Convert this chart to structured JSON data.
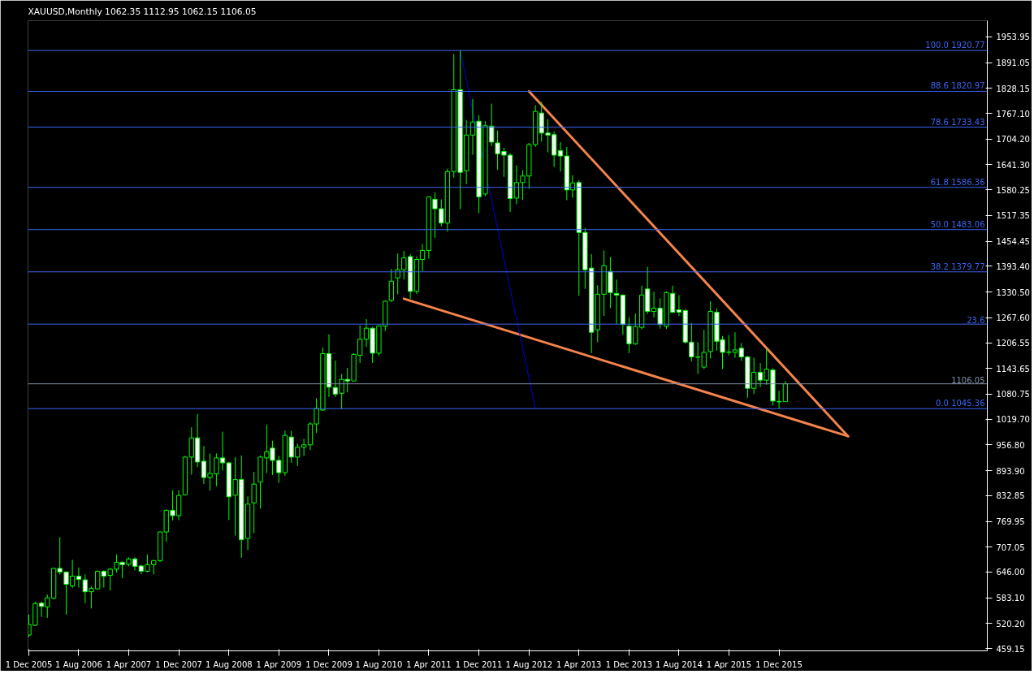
{
  "chart_data": {
    "type": "candlestick",
    "title": "XAUUSD,Monthly  1062.35 1112.95 1062.15 1106.05",
    "color": "#00ff00",
    "x": [
      "2005-12",
      "2006-01",
      "2006-02",
      "2006-03",
      "2006-04",
      "2006-05",
      "2006-06",
      "2006-07",
      "2006-08",
      "2006-09",
      "2006-10",
      "2006-11",
      "2006-12",
      "2007-01",
      "2007-02",
      "2007-03",
      "2007-04",
      "2007-05",
      "2007-06",
      "2007-07",
      "2007-08",
      "2007-09",
      "2007-10",
      "2007-11",
      "2007-12",
      "2008-01",
      "2008-02",
      "2008-03",
      "2008-04",
      "2008-05",
      "2008-06",
      "2008-07",
      "2008-08",
      "2008-09",
      "2008-10",
      "2008-11",
      "2008-12",
      "2009-01",
      "2009-02",
      "2009-03",
      "2009-04",
      "2009-05",
      "2009-06",
      "2009-07",
      "2009-08",
      "2009-09",
      "2009-10",
      "2009-11",
      "2009-12",
      "2010-01",
      "2010-02",
      "2010-03",
      "2010-04",
      "2010-05",
      "2010-06",
      "2010-07",
      "2010-08",
      "2010-09",
      "2010-10",
      "2010-11",
      "2010-12",
      "2011-01",
      "2011-02",
      "2011-03",
      "2011-04",
      "2011-05",
      "2011-06",
      "2011-07",
      "2011-08",
      "2011-09",
      "2011-10",
      "2011-11",
      "2011-12",
      "2012-01",
      "2012-02",
      "2012-03",
      "2012-04",
      "2012-05",
      "2012-06",
      "2012-07",
      "2012-08",
      "2012-09",
      "2012-10",
      "2012-11",
      "2012-12",
      "2013-01",
      "2013-02",
      "2013-03",
      "2013-04",
      "2013-05",
      "2013-06",
      "2013-07",
      "2013-08",
      "2013-09",
      "2013-10",
      "2013-11",
      "2013-12",
      "2014-01",
      "2014-02",
      "2014-03",
      "2014-04",
      "2014-05",
      "2014-06",
      "2014-07",
      "2014-08",
      "2014-09",
      "2014-10",
      "2014-11",
      "2014-12",
      "2015-01",
      "2015-02",
      "2015-03",
      "2015-04",
      "2015-05",
      "2015-06",
      "2015-07",
      "2015-08",
      "2015-09",
      "2015-10",
      "2015-11",
      "2015-12",
      "2016-01"
    ],
    "ohlc": [
      [
        492,
        542,
        487,
        518
      ],
      [
        516,
        574,
        514,
        569
      ],
      [
        570,
        574,
        536,
        562
      ],
      [
        561,
        591,
        534,
        583
      ],
      [
        582,
        656,
        579,
        655
      ],
      [
        655,
        731,
        640,
        646
      ],
      [
        646,
        648,
        542,
        616
      ],
      [
        612,
        676,
        607,
        636
      ],
      [
        636,
        657,
        608,
        628
      ],
      [
        627,
        640,
        570,
        598
      ],
      [
        598,
        612,
        557,
        606
      ],
      [
        605,
        650,
        603,
        648
      ],
      [
        648,
        650,
        608,
        636
      ],
      [
        638,
        656,
        601,
        653
      ],
      [
        653,
        689,
        645,
        670
      ],
      [
        670,
        672,
        631,
        664
      ],
      [
        665,
        682,
        660,
        678
      ],
      [
        678,
        682,
        650,
        660
      ],
      [
        661,
        664,
        641,
        648
      ],
      [
        648,
        689,
        645,
        664
      ],
      [
        664,
        676,
        640,
        674
      ],
      [
        674,
        745,
        670,
        744
      ],
      [
        744,
        799,
        720,
        797
      ],
      [
        797,
        846,
        772,
        784
      ],
      [
        784,
        846,
        773,
        833
      ],
      [
        835,
        930,
        833,
        927
      ],
      [
        927,
        1000,
        884,
        974
      ],
      [
        974,
        1032,
        903,
        915
      ],
      [
        917,
        954,
        861,
        877
      ],
      [
        877,
        936,
        845,
        887
      ],
      [
        886,
        936,
        856,
        925
      ],
      [
        925,
        989,
        894,
        913
      ],
      [
        913,
        915,
        773,
        830
      ],
      [
        834,
        927,
        735,
        872
      ],
      [
        872,
        931,
        681,
        725
      ],
      [
        728,
        831,
        700,
        812
      ],
      [
        815,
        891,
        741,
        861
      ],
      [
        866,
        931,
        801,
        927
      ],
      [
        925,
        1006,
        888,
        940
      ],
      [
        949,
        967,
        883,
        919
      ],
      [
        919,
        930,
        864,
        889
      ],
      [
        889,
        992,
        881,
        980
      ],
      [
        976,
        991,
        913,
        927
      ],
      [
        927,
        960,
        905,
        951
      ],
      [
        951,
        972,
        930,
        957
      ],
      [
        957,
        1012,
        944,
        1008
      ],
      [
        1008,
        1071,
        986,
        1046
      ],
      [
        1042,
        1195,
        1040,
        1180
      ],
      [
        1180,
        1227,
        1074,
        1098
      ],
      [
        1097,
        1163,
        1074,
        1081
      ],
      [
        1083,
        1130,
        1044,
        1117
      ],
      [
        1117,
        1145,
        1085,
        1113
      ],
      [
        1113,
        1181,
        1112,
        1178
      ],
      [
        1176,
        1249,
        1157,
        1215
      ],
      [
        1215,
        1264,
        1196,
        1242
      ],
      [
        1242,
        1245,
        1157,
        1181
      ],
      [
        1181,
        1248,
        1174,
        1248
      ],
      [
        1247,
        1310,
        1235,
        1308
      ],
      [
        1310,
        1387,
        1306,
        1357
      ],
      [
        1365,
        1425,
        1325,
        1385
      ],
      [
        1385,
        1431,
        1361,
        1414
      ],
      [
        1417,
        1423,
        1314,
        1332
      ],
      [
        1332,
        1417,
        1325,
        1410
      ],
      [
        1410,
        1448,
        1380,
        1432
      ],
      [
        1432,
        1564,
        1412,
        1563
      ],
      [
        1557,
        1574,
        1463,
        1534
      ],
      [
        1534,
        1557,
        1491,
        1499
      ],
      [
        1499,
        1632,
        1478,
        1625
      ],
      [
        1625,
        1912,
        1610,
        1825
      ],
      [
        1825,
        1922,
        1533,
        1623
      ],
      [
        1627,
        1751,
        1594,
        1714
      ],
      [
        1714,
        1802,
        1666,
        1746
      ],
      [
        1748,
        1763,
        1523,
        1563
      ],
      [
        1570,
        1748,
        1565,
        1737
      ],
      [
        1736,
        1791,
        1687,
        1697
      ],
      [
        1695,
        1725,
        1629,
        1668
      ],
      [
        1674,
        1683,
        1612,
        1665
      ],
      [
        1665,
        1670,
        1526,
        1559
      ],
      [
        1560,
        1640,
        1545,
        1598
      ],
      [
        1598,
        1628,
        1555,
        1614
      ],
      [
        1614,
        1695,
        1583,
        1691
      ],
      [
        1691,
        1787,
        1685,
        1772
      ],
      [
        1768,
        1795,
        1698,
        1719
      ],
      [
        1719,
        1753,
        1672,
        1714
      ],
      [
        1715,
        1723,
        1636,
        1665
      ],
      [
        1676,
        1697,
        1625,
        1663
      ],
      [
        1663,
        1685,
        1555,
        1580
      ],
      [
        1580,
        1616,
        1561,
        1597
      ],
      [
        1598,
        1604,
        1321,
        1476
      ],
      [
        1476,
        1487,
        1338,
        1385
      ],
      [
        1389,
        1423,
        1181,
        1232
      ],
      [
        1238,
        1347,
        1208,
        1325
      ],
      [
        1325,
        1432,
        1272,
        1395
      ],
      [
        1381,
        1416,
        1291,
        1329
      ],
      [
        1327,
        1361,
        1252,
        1323
      ],
      [
        1323,
        1324,
        1226,
        1251
      ],
      [
        1247,
        1269,
        1181,
        1204
      ],
      [
        1204,
        1278,
        1201,
        1246
      ],
      [
        1244,
        1346,
        1239,
        1323
      ],
      [
        1338,
        1392,
        1277,
        1283
      ],
      [
        1283,
        1331,
        1268,
        1291
      ],
      [
        1291,
        1315,
        1241,
        1251
      ],
      [
        1247,
        1332,
        1240,
        1329
      ],
      [
        1327,
        1346,
        1279,
        1281
      ],
      [
        1287,
        1323,
        1272,
        1281
      ],
      [
        1285,
        1289,
        1204,
        1208
      ],
      [
        1208,
        1255,
        1161,
        1172
      ],
      [
        1172,
        1208,
        1130,
        1171
      ],
      [
        1147,
        1238,
        1142,
        1183
      ],
      [
        1185,
        1308,
        1168,
        1283
      ],
      [
        1281,
        1290,
        1187,
        1210
      ],
      [
        1214,
        1223,
        1142,
        1183
      ],
      [
        1183,
        1225,
        1176,
        1184
      ],
      [
        1183,
        1232,
        1170,
        1189
      ],
      [
        1193,
        1206,
        1162,
        1172
      ],
      [
        1172,
        1174,
        1072,
        1095
      ],
      [
        1095,
        1170,
        1081,
        1134
      ],
      [
        1134,
        1157,
        1098,
        1115
      ],
      [
        1115,
        1191,
        1104,
        1142
      ],
      [
        1140,
        1144,
        1053,
        1064
      ],
      [
        1063,
        1089,
        1045.4,
        1062
      ],
      [
        1062.35,
        1112.95,
        1062.15,
        1106.05
      ]
    ],
    "series": [
      {
        "type": "line",
        "color": "#f5844c",
        "line_style": "solid",
        "x": [
          "2012-08",
          "2016-11"
        ],
        "values": [
          1821,
          978
        ]
      },
      {
        "type": "line",
        "color": "#f5844c",
        "line_style": "solid",
        "x": [
          "2010-12",
          "2016-11"
        ],
        "values": [
          1314,
          978
        ]
      },
      {
        "type": "line",
        "color": "#0000ff",
        "line_style": "dotted",
        "x": [
          "2011-09",
          "2012-09"
        ],
        "values": [
          1921,
          1045
        ]
      }
    ],
    "ref_lines": [
      {
        "axis": "y",
        "value": 1920.77,
        "label": "100.0 1920.77",
        "color": "#3c64f0"
      },
      {
        "axis": "y",
        "value": 1820.97,
        "label": "88.6 1820.97",
        "color": "#3c64f0"
      },
      {
        "axis": "y",
        "value": 1733.43,
        "label": "78.6 1733.43",
        "color": "#3c64f0"
      },
      {
        "axis": "y",
        "value": 1586.36,
        "label": "61.8 1586.36",
        "color": "#3c64f0"
      },
      {
        "axis": "y",
        "value": 1483.06,
        "label": "50.0 1483.06",
        "color": "#3c64f0"
      },
      {
        "axis": "y",
        "value": 1379.77,
        "label": "38.2 1379.77",
        "color": "#3c64f0"
      },
      {
        "axis": "y",
        "value": 1251.96,
        "color": "#3c64f0"
      },
      {
        "axis": "y",
        "value": 1045.36,
        "label": "0.0 1045.36",
        "color": "#3c64f0"
      },
      {
        "axis": "y",
        "value": 1106.05,
        "label": "1106.05",
        "color": "#8090a8"
      }
    ],
    "annotations": [
      {
        "text": "23.6",
        "x": "2018-09-10",
        "y": 1251.96
      }
    ],
    "xlim": [
      "2005-11-27",
      "2018-09-10"
    ],
    "ylim": [
      453.4,
      1993.6
    ],
    "xticks": [
      {
        "value": "2005-12",
        "label": "1 Dec 2005"
      },
      {
        "value": "2006-08",
        "label": "1 Aug 2006"
      },
      {
        "value": "2007-04",
        "label": "1 Apr 2007"
      },
      {
        "value": "2007-12",
        "label": "1 Dec 2007"
      },
      {
        "value": "2008-08",
        "label": "1 Aug 2008"
      },
      {
        "value": "2009-04",
        "label": "1 Apr 2009"
      },
      {
        "value": "2009-12",
        "label": "1 Dec 2009"
      },
      {
        "value": "2010-08",
        "label": "1 Aug 2010"
      },
      {
        "value": "2011-04",
        "label": "1 Apr 2011"
      },
      {
        "value": "2011-12",
        "label": "1 Dec 2011"
      },
      {
        "value": "2012-08",
        "label": "1 Aug 2012"
      },
      {
        "value": "2013-04",
        "label": "1 Apr 2013"
      },
      {
        "value": "2013-12",
        "label": "1 Dec 2013"
      },
      {
        "value": "2014-08",
        "label": "1 Aug 2014"
      },
      {
        "value": "2015-04",
        "label": "1 Apr 2015"
      },
      {
        "value": "2015-12",
        "label": "1 Dec 2015"
      }
    ],
    "yticks": [
      1953.95,
      1891.05,
      1828.15,
      {
        "value": 1767.1,
        "label": "1767.10"
      },
      {
        "value": 1704.2,
        "label": "1704.20"
      },
      {
        "value": 1641.3,
        "label": "1641.30"
      },
      1580.25,
      1517.35,
      1454.45,
      {
        "value": 1393.4,
        "label": "1393.40"
      },
      {
        "value": 1330.5,
        "label": "1330.50"
      },
      {
        "value": 1267.6,
        "label": "1267.60"
      },
      1206.55,
      1143.65,
      1080.75,
      {
        "value": 1019.7,
        "label": "1019.70"
      },
      {
        "value": 956.8,
        "label": "956.80"
      },
      {
        "value": 893.9,
        "label": "893.90"
      },
      832.85,
      769.95,
      707.05,
      {
        "value": 646,
        "label": "646.00"
      },
      {
        "value": 583.1,
        "label": "583.10"
      },
      {
        "value": 520.2,
        "label": "520.20"
      },
      459.15
    ]
  }
}
